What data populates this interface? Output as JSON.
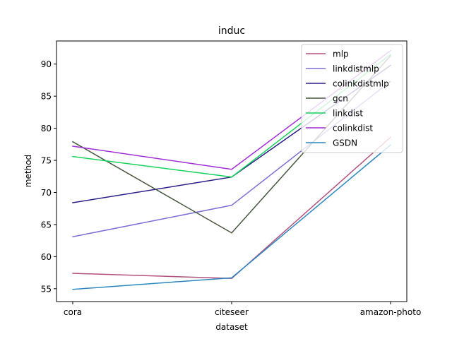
{
  "chart_data": {
    "type": "line",
    "title": "induc",
    "xlabel": "dataset",
    "ylabel": "method",
    "categories": [
      "cora",
      "citeseer",
      "amazon-photo"
    ],
    "ylim": [
      53.0,
      93.6
    ],
    "yticks": [
      55,
      60,
      65,
      70,
      75,
      80,
      85,
      90
    ],
    "grid": false,
    "legend_position": "top-right",
    "series": [
      {
        "name": "mlp",
        "color": "#b5507e",
        "values": [
          57.4,
          56.6,
          78.6
        ]
      },
      {
        "name": "linkdistmlp",
        "color": "#7b6fd6",
        "values": [
          63.1,
          68.0,
          87.3
        ]
      },
      {
        "name": "colinkdistmlp",
        "color": "#2b1f8a",
        "values": [
          68.4,
          72.4,
          89.8
        ]
      },
      {
        "name": "gcn",
        "color": "#45573d",
        "values": [
          77.9,
          63.7,
          91.3
        ]
      },
      {
        "name": "linkdist",
        "color": "#15d35a",
        "values": [
          75.6,
          72.4,
          91.5
        ]
      },
      {
        "name": "colinkdist",
        "color": "#a12fd9",
        "values": [
          77.2,
          73.6,
          92.1
        ]
      },
      {
        "name": "GSDN",
        "color": "#2b87bf",
        "values": [
          54.9,
          56.7,
          77.4
        ]
      }
    ]
  }
}
